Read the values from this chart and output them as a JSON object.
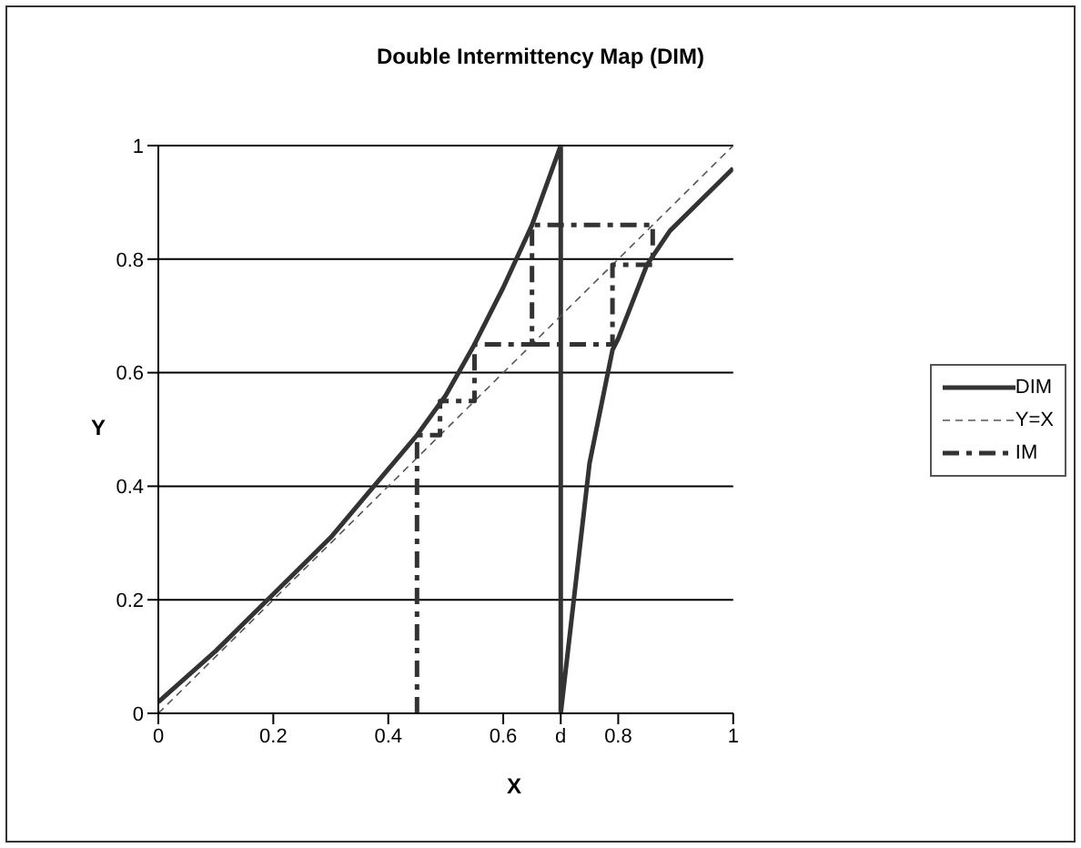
{
  "chart_data": {
    "type": "line",
    "title": "Double Intermittency Map (DIM)",
    "xlabel": "X",
    "ylabel": "Y",
    "xlim": [
      0,
      1
    ],
    "ylim": [
      0,
      1
    ],
    "xticks": [
      0,
      0.2,
      0.4,
      0.6,
      {
        "value": 0.7,
        "label": "d"
      },
      0.8,
      1
    ],
    "yticks": [
      0,
      0.2,
      0.4,
      0.6,
      0.8,
      1
    ],
    "grid": "y",
    "legend": "right",
    "marker": "none",
    "series": [
      {
        "name": "DIM",
        "color": "#333333",
        "line_style": "solid",
        "x": [
          0,
          0.1,
          0.2,
          0.3,
          0.4,
          0.45,
          0.5,
          0.55,
          0.6,
          0.65,
          0.7,
          0.7,
          0.75,
          0.79,
          0.8,
          0.85,
          0.89,
          1
        ],
        "values": [
          0.02,
          0.11,
          0.21,
          0.31,
          0.43,
          0.49,
          0.56,
          0.65,
          0.75,
          0.86,
          1,
          0,
          0.44,
          0.64,
          0.66,
          0.79,
          0.85,
          0.96
        ]
      },
      {
        "name": "Y=X",
        "color": "#555555",
        "line_style": "dashed",
        "x": [
          0,
          1
        ],
        "values": [
          0,
          1
        ]
      },
      {
        "name": "IM",
        "color": "#333333",
        "line_style": "dashed",
        "x": [
          0.45,
          0.45,
          0.49,
          0.49,
          0.55,
          0.55,
          0.65,
          0.65,
          0.86,
          0.86,
          0.79,
          0.79,
          0.65
        ],
        "values": [
          0,
          0.49,
          0.49,
          0.55,
          0.55,
          0.65,
          0.65,
          0.86,
          0.86,
          0.79,
          0.79,
          0.65,
          0.65
        ]
      }
    ]
  }
}
